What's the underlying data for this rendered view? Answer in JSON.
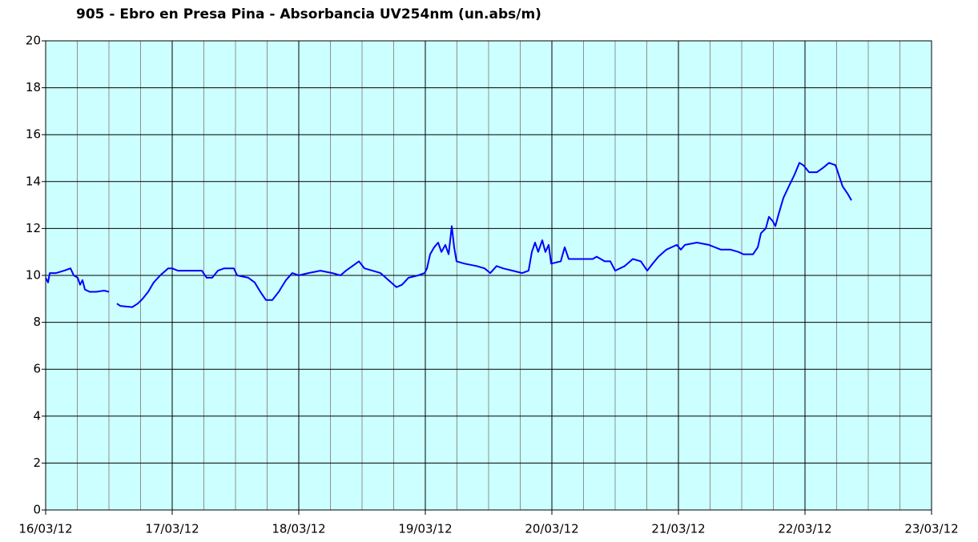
{
  "chart_data": {
    "type": "line",
    "title": "905 - Ebro en Presa Pina - Absorbancia UV254nm (un.abs/m)",
    "x": [
      0,
      0.019,
      0.032,
      0.082,
      0.146,
      0.196,
      0.222,
      0.253,
      0.272,
      0.291,
      0.31,
      0.348,
      0.399,
      0.462,
      0.5,
      0.53,
      0.563,
      0.589,
      0.684,
      0.728,
      0.766,
      0.81,
      0.854,
      0.905,
      0.968,
      1,
      1.044,
      1.158,
      1.234,
      1.272,
      1.316,
      1.361,
      1.411,
      1.487,
      1.513,
      1.601,
      1.652,
      1.696,
      1.741,
      1.791,
      1.842,
      1.899,
      1.949,
      2,
      2.076,
      2.171,
      2.266,
      2.329,
      2.373,
      2.424,
      2.475,
      2.519,
      2.582,
      2.646,
      2.709,
      2.772,
      2.816,
      2.867,
      2.943,
      2.994,
      3.013,
      3.038,
      3.07,
      3.101,
      3.127,
      3.158,
      3.184,
      3.209,
      3.228,
      3.247,
      3.31,
      3.405,
      3.468,
      3.513,
      3.563,
      3.614,
      3.69,
      3.766,
      3.816,
      3.842,
      3.867,
      3.892,
      3.924,
      3.949,
      3.975,
      3.994,
      4.07,
      4.101,
      4.133,
      4.228,
      4.323,
      4.354,
      4.418,
      4.462,
      4.5,
      4.576,
      4.639,
      4.703,
      4.753,
      4.797,
      4.842,
      4.905,
      4.987,
      5.019,
      5.051,
      5.146,
      5.241,
      5.335,
      5.411,
      5.475,
      5.513,
      5.589,
      5.627,
      5.652,
      5.69,
      5.715,
      5.747,
      5.766,
      5.791,
      5.829,
      5.873,
      5.918,
      5.956,
      5.987,
      6.032,
      6.095,
      6.146,
      6.19,
      6.241,
      6.272,
      6.297,
      6.335,
      6.367
    ],
    "series": [
      {
        "name": "UV254",
        "color": "#0000ff",
        "values": [
          9.9,
          9.7,
          10.1,
          10.1,
          10.2,
          10.3,
          10.0,
          9.9,
          9.6,
          9.8,
          9.4,
          9.3,
          9.3,
          9.35,
          9.3,
          null,
          8.8,
          8.7,
          8.65,
          8.8,
          9.0,
          9.3,
          9.7,
          10.0,
          10.3,
          10.3,
          10.2,
          10.2,
          10.2,
          9.9,
          9.9,
          10.2,
          10.3,
          10.3,
          10.0,
          9.9,
          9.7,
          9.3,
          8.95,
          8.95,
          9.3,
          9.8,
          10.1,
          10.0,
          10.1,
          10.2,
          10.1,
          10.0,
          10.2,
          10.4,
          10.6,
          10.3,
          10.2,
          10.1,
          9.8,
          9.5,
          9.6,
          9.9,
          10.0,
          10.1,
          10.3,
          10.9,
          11.2,
          11.4,
          11.0,
          11.3,
          10.9,
          12.1,
          11.2,
          10.6,
          10.5,
          10.4,
          10.3,
          10.1,
          10.4,
          10.3,
          10.2,
          10.1,
          10.2,
          11.0,
          11.4,
          11.0,
          11.5,
          11.0,
          11.3,
          10.5,
          10.6,
          11.2,
          10.7,
          10.7,
          10.7,
          10.8,
          10.6,
          10.6,
          10.2,
          10.4,
          10.7,
          10.6,
          10.2,
          10.5,
          10.8,
          11.1,
          11.3,
          11.1,
          11.3,
          11.4,
          11.3,
          11.1,
          11.1,
          11.0,
          10.9,
          10.9,
          11.2,
          11.8,
          12.0,
          12.5,
          12.3,
          12.1,
          12.6,
          13.3,
          13.8,
          14.3,
          14.8,
          14.7,
          14.4,
          14.4,
          14.6,
          14.8,
          14.7,
          14.2,
          13.8,
          13.5,
          13.2
        ]
      }
    ],
    "xlim": [
      0,
      7
    ],
    "xticks": [
      {
        "value": 0,
        "label": "16/03/12"
      },
      {
        "value": 1,
        "label": "17/03/12"
      },
      {
        "value": 2,
        "label": "18/03/12"
      },
      {
        "value": 3,
        "label": "19/03/12"
      },
      {
        "value": 4,
        "label": "20/03/12"
      },
      {
        "value": 5,
        "label": "21/03/12"
      },
      {
        "value": 6,
        "label": "22/03/12"
      },
      {
        "value": 7,
        "label": "23/03/12"
      }
    ],
    "xminorticks": [
      0.25,
      0.5,
      0.75,
      1.25,
      1.5,
      1.75,
      2.25,
      2.5,
      2.75,
      3.25,
      3.5,
      3.75,
      4.25,
      4.5,
      4.75,
      5.25,
      5.5,
      5.75,
      6.25,
      6.5,
      6.75
    ],
    "ylim": [
      0,
      20
    ],
    "yticks": [
      0,
      2,
      4,
      6,
      8,
      10,
      12,
      14,
      16,
      18,
      20
    ],
    "grid": true,
    "background": "#ccffff",
    "major_grid_color": "#000000",
    "minor_grid_color": "#909090"
  }
}
